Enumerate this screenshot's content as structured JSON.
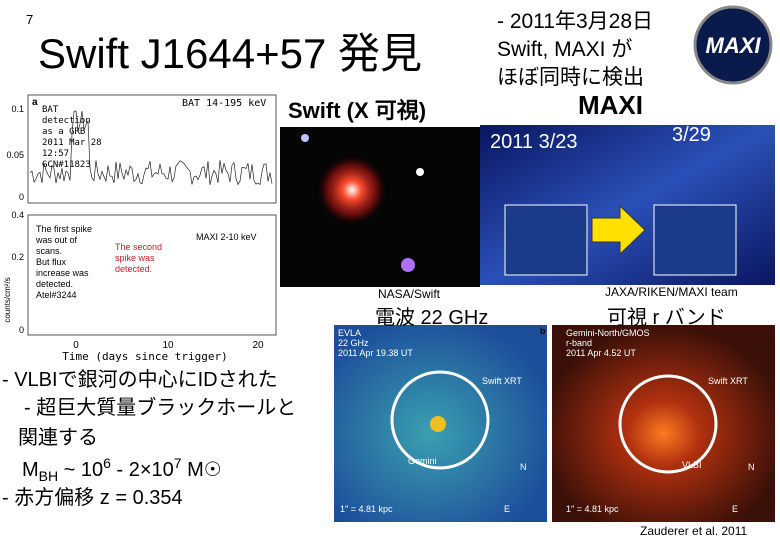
{
  "slide_number": "7",
  "title": "Swift J1644+57 発見",
  "summary": [
    "- 2011年3月28日",
    "Swift, MAXI が",
    "ほぼ同時に検出"
  ],
  "logo": "MAXI",
  "swift_panel": {
    "label": "Swift (X 可視)",
    "credit": "NASA/Swift"
  },
  "maxi_panel": {
    "label": "MAXI",
    "date_before": "2011 3/23",
    "date_after": "3/29",
    "credit": "JAXA/RIKEN/MAXI team"
  },
  "light_curve": {
    "panel_letter": "a",
    "top_note": [
      "BAT",
      "detection",
      "as a GRB",
      "2011 Mar 28",
      "12:57",
      "GCN#11823"
    ],
    "top_band": "BAT 14-195 keV",
    "top_yticks": [
      "0.1",
      "0.05",
      "0"
    ],
    "bottom_note": [
      "The first spike",
      "was out of",
      "scans.",
      "But flux",
      "increase was",
      "detected.",
      "Atel#3244"
    ],
    "second_note": [
      "The second",
      "spike was",
      "detected."
    ],
    "bottom_band": "MAXI 2-10 keV",
    "bottom_yticks": [
      "0.4",
      "0.2",
      "0"
    ],
    "ylabel": "counts/cm²/s",
    "xticks": [
      "0",
      "10",
      "20"
    ],
    "xlabel": "Time (days since trigger)"
  },
  "radio_panel": {
    "heading": "電波 22 GHz",
    "lines": [
      "EVLA",
      "22 GHz",
      "2011 Apr 19.38 UT"
    ],
    "circle_label": "Swift XRT",
    "arrow_label": "Gemini",
    "north": "N",
    "east": "E",
    "scale": "1″ = 4.81 kpc"
  },
  "optical_panel": {
    "heading": "可視 r バンド",
    "panel_letter": "b",
    "lines": [
      "Gemini-North/GMOS",
      "r-band",
      "2011 Apr 4.52 UT"
    ],
    "circle_label": "Swift XRT",
    "arrow_label": "VLBI",
    "north": "N",
    "east": "E",
    "scale": "1″ = 4.81 kpc"
  },
  "bullets": [
    "- VLBIで銀河の中心にIDされた",
    "- 超巨大質量ブラックホールと",
    "関連する",
    "- 赤方偏移 z = 0.354"
  ],
  "mass_formula": [
    "M",
    "BH",
    " ~ 10",
    "6",
    " - 2×10",
    "7",
    " M☉"
  ],
  "citation": "Zauderer et al. 2011"
}
